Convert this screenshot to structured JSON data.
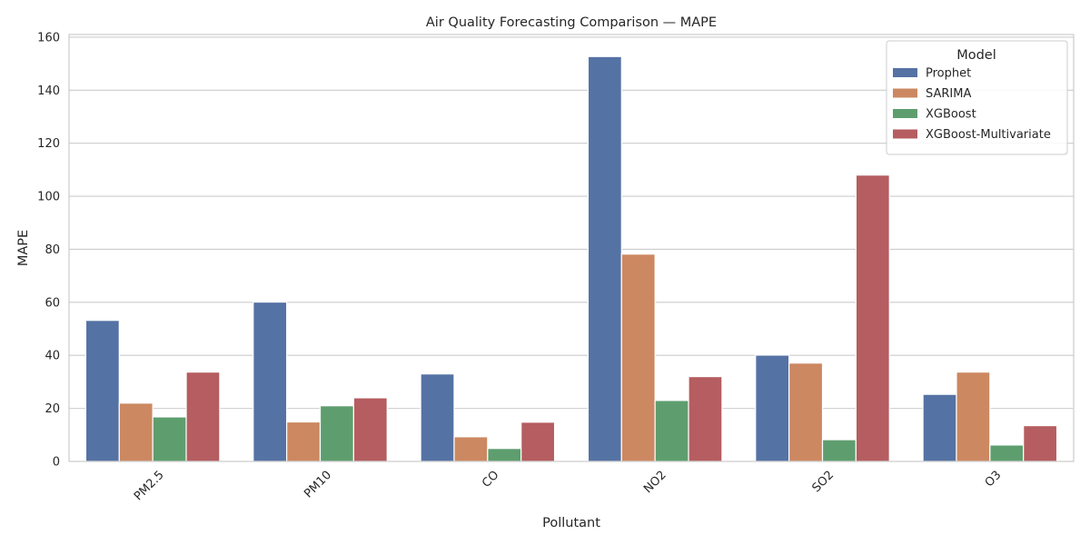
{
  "chart_data": {
    "type": "bar",
    "title": "Air Quality Forecasting Comparison — MAPE",
    "xlabel": "Pollutant",
    "ylabel": "MAPE",
    "ylim": [
      0,
      161
    ],
    "yticks": [
      0,
      20,
      40,
      60,
      80,
      100,
      120,
      140,
      160
    ],
    "grid": true,
    "legend_title": "Model",
    "legend_position": "top-right",
    "categories": [
      "PM2.5",
      "PM10",
      "CO",
      "NO2",
      "SO2",
      "O3"
    ],
    "series": [
      {
        "name": "Prophet",
        "color": "#5572a4",
        "values": [
          53.2,
          60.1,
          33.0,
          152.7,
          40.1,
          25.3
        ]
      },
      {
        "name": "SARIMA",
        "color": "#cc8861",
        "values": [
          22.0,
          14.9,
          9.3,
          78.2,
          37.1,
          33.7
        ]
      },
      {
        "name": "XGBoost",
        "color": "#5e9e6e",
        "values": [
          16.8,
          21.0,
          4.9,
          23.0,
          8.2,
          6.2
        ]
      },
      {
        "name": "XGBoost-Multivariate",
        "color": "#b55d60",
        "values": [
          33.7,
          24.0,
          14.8,
          32.0,
          108.0,
          13.5
        ]
      }
    ]
  }
}
